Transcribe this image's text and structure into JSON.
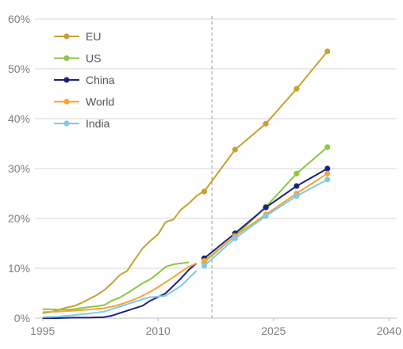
{
  "chart_data": {
    "type": "line",
    "title": "",
    "xlabel": "",
    "ylabel": "",
    "xlim": [
      1994,
      2041
    ],
    "ylim": [
      0,
      60
    ],
    "x_ticks": [
      "1995",
      "2010",
      "2025",
      "2040"
    ],
    "x_tick_values": [
      1995,
      2010,
      2025,
      2040
    ],
    "y_ticks": [
      "0%",
      "10%",
      "20%",
      "30%",
      "40%",
      "50%",
      "60%"
    ],
    "y_tick_values": [
      0,
      10,
      20,
      30,
      40,
      50,
      60
    ],
    "grid": true,
    "legend_position": "top-left",
    "projection_start_x": 2017,
    "series": [
      {
        "name": "EU",
        "color": "#c9a032",
        "historical": [
          [
            1995,
            1.0
          ],
          [
            1996,
            1.2
          ],
          [
            1997,
            1.6
          ],
          [
            1998,
            2.1
          ],
          [
            1999,
            2.4
          ],
          [
            2000,
            3.0
          ],
          [
            2001,
            3.8
          ],
          [
            2002,
            4.6
          ],
          [
            2003,
            5.6
          ],
          [
            2004,
            7.0
          ],
          [
            2005,
            8.6
          ],
          [
            2006,
            9.5
          ],
          [
            2007,
            11.8
          ],
          [
            2008,
            14.0
          ],
          [
            2009,
            15.5
          ],
          [
            2010,
            16.8
          ],
          [
            2011,
            19.3
          ],
          [
            2012,
            19.8
          ],
          [
            2013,
            21.8
          ],
          [
            2014,
            23.0
          ],
          [
            2015,
            24.5
          ],
          [
            2016,
            25.5
          ]
        ],
        "projected": [
          [
            2016,
            25.4
          ],
          [
            2020,
            33.8
          ],
          [
            2024,
            39.0
          ],
          [
            2028,
            46.0
          ],
          [
            2032,
            53.5
          ]
        ]
      },
      {
        "name": "US",
        "color": "#8dc63f",
        "historical": [
          [
            1995,
            1.8
          ],
          [
            1996,
            1.8
          ],
          [
            1997,
            1.7
          ],
          [
            1998,
            1.7
          ],
          [
            1999,
            1.8
          ],
          [
            2000,
            2.0
          ],
          [
            2001,
            2.2
          ],
          [
            2002,
            2.4
          ],
          [
            2003,
            2.6
          ],
          [
            2004,
            3.5
          ],
          [
            2005,
            4.1
          ],
          [
            2006,
            5.0
          ],
          [
            2007,
            6.0
          ],
          [
            2008,
            7.0
          ],
          [
            2009,
            7.8
          ],
          [
            2010,
            9.0
          ],
          [
            2011,
            10.3
          ],
          [
            2012,
            10.8
          ],
          [
            2013,
            11.0
          ],
          [
            2014,
            11.2
          ]
        ],
        "projected": [
          [
            2016,
            11.2
          ],
          [
            2020,
            16.5
          ],
          [
            2024,
            22.3
          ],
          [
            2028,
            29.0
          ],
          [
            2032,
            34.3
          ]
        ]
      },
      {
        "name": "China",
        "color": "#1a237e",
        "historical": [
          [
            1995,
            0.0
          ],
          [
            1997,
            0.0
          ],
          [
            1999,
            0.1
          ],
          [
            2001,
            0.1
          ],
          [
            2003,
            0.2
          ],
          [
            2004,
            0.5
          ],
          [
            2005,
            1.0
          ],
          [
            2006,
            1.5
          ],
          [
            2007,
            2.0
          ],
          [
            2008,
            2.5
          ],
          [
            2009,
            3.5
          ],
          [
            2010,
            4.2
          ],
          [
            2011,
            5.0
          ],
          [
            2012,
            6.5
          ],
          [
            2013,
            8.0
          ],
          [
            2014,
            9.7
          ],
          [
            2015,
            11.0
          ]
        ],
        "projected": [
          [
            2016,
            12.0
          ],
          [
            2020,
            17.0
          ],
          [
            2024,
            22.2
          ],
          [
            2028,
            26.5
          ],
          [
            2032,
            30.0
          ]
        ]
      },
      {
        "name": "World",
        "color": "#f4a535",
        "historical": [
          [
            1995,
            1.2
          ],
          [
            1997,
            1.3
          ],
          [
            1999,
            1.5
          ],
          [
            2001,
            1.7
          ],
          [
            2003,
            2.0
          ],
          [
            2004,
            2.3
          ],
          [
            2005,
            2.7
          ],
          [
            2006,
            3.2
          ],
          [
            2007,
            3.8
          ],
          [
            2008,
            4.5
          ],
          [
            2009,
            5.3
          ],
          [
            2010,
            6.2
          ],
          [
            2011,
            7.2
          ],
          [
            2012,
            8.2
          ],
          [
            2013,
            9.3
          ],
          [
            2014,
            10.3
          ],
          [
            2015,
            11.0
          ]
        ],
        "projected": [
          [
            2016,
            11.5
          ],
          [
            2020,
            16.5
          ],
          [
            2024,
            20.8
          ],
          [
            2028,
            25.0
          ],
          [
            2032,
            29.0
          ]
        ]
      },
      {
        "name": "India",
        "color": "#7ecbea",
        "historical": [
          [
            1995,
            0.2
          ],
          [
            1997,
            0.3
          ],
          [
            1999,
            0.6
          ],
          [
            2001,
            0.9
          ],
          [
            2003,
            1.3
          ],
          [
            2004,
            1.8
          ],
          [
            2005,
            2.3
          ],
          [
            2006,
            2.8
          ],
          [
            2007,
            3.3
          ],
          [
            2008,
            3.8
          ],
          [
            2009,
            4.2
          ],
          [
            2010,
            4.3
          ],
          [
            2011,
            4.5
          ],
          [
            2012,
            5.5
          ],
          [
            2013,
            6.5
          ],
          [
            2014,
            8.0
          ],
          [
            2015,
            9.5
          ]
        ],
        "projected": [
          [
            2016,
            10.5
          ],
          [
            2020,
            16.0
          ],
          [
            2024,
            20.5
          ],
          [
            2028,
            24.5
          ],
          [
            2032,
            27.8
          ]
        ]
      }
    ]
  }
}
